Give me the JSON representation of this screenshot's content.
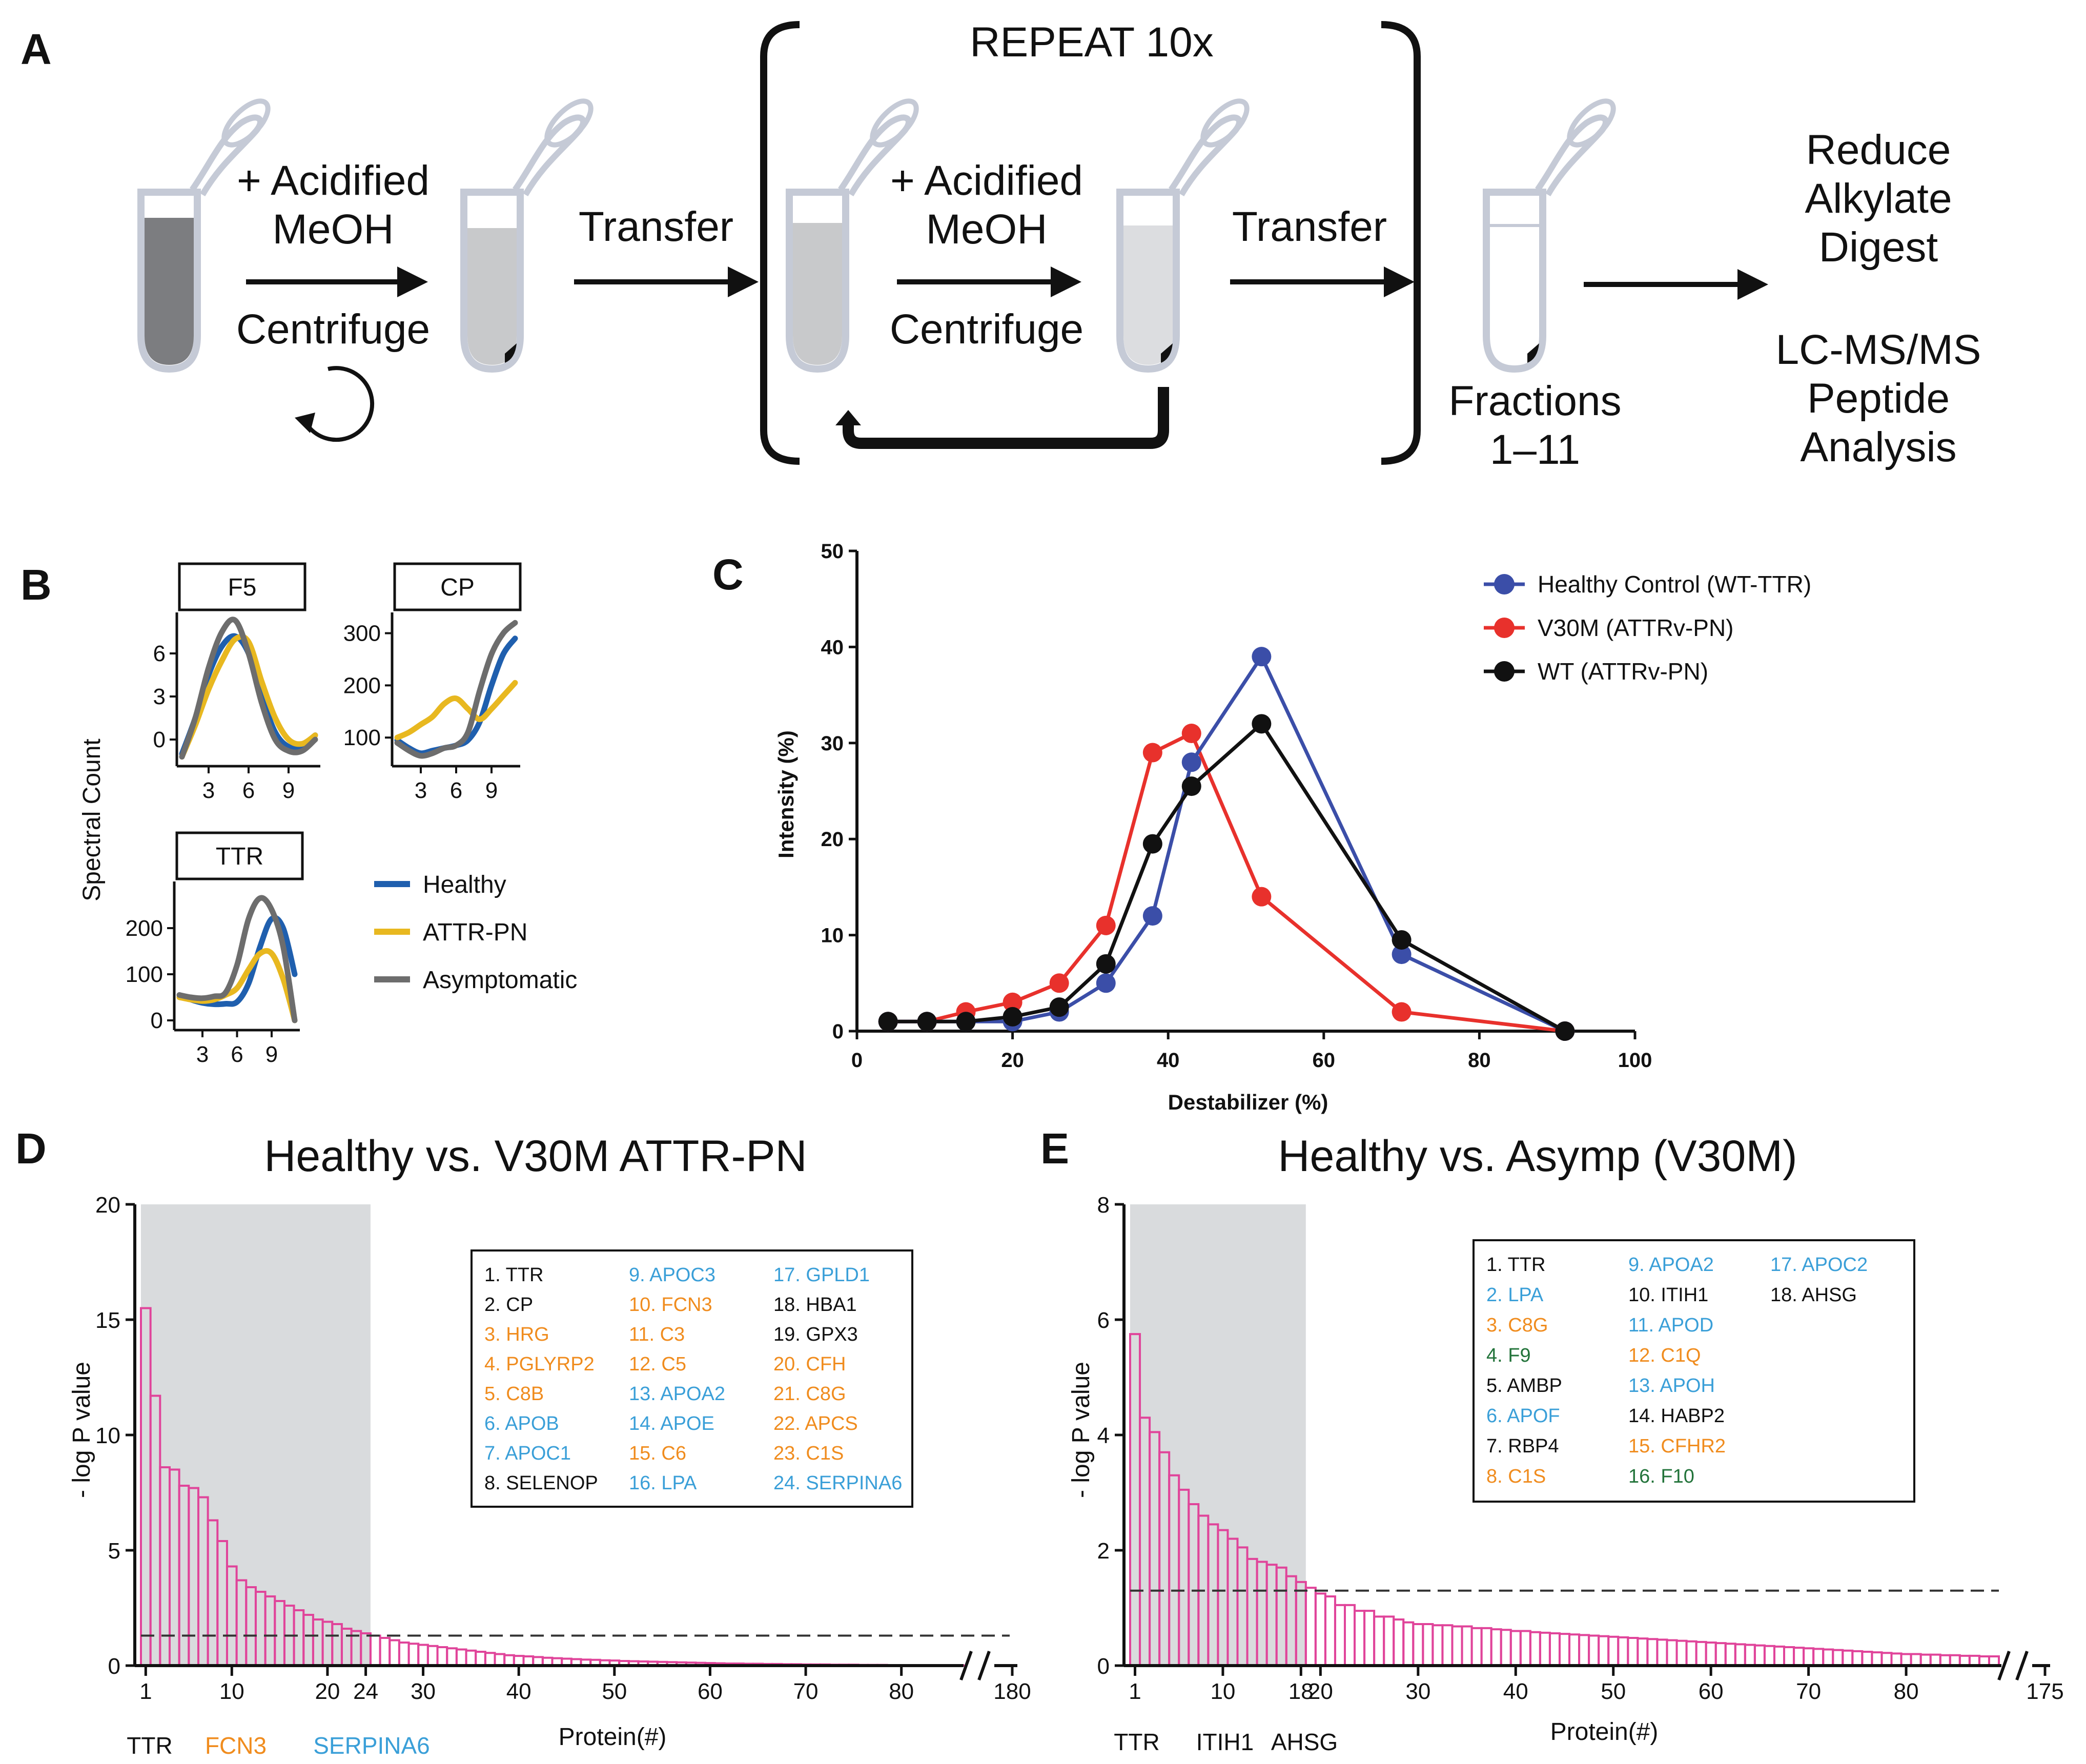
{
  "panels": {
    "A": "A",
    "B": "B",
    "C": "C",
    "D": "D",
    "E": "E"
  },
  "panel_a": {
    "repeat_label": "REPEAT 10x",
    "step1_top": "+ Acidified",
    "step1_mid": "MeOH",
    "step1_bottom": "Centrifuge",
    "transfer_1": "Transfer",
    "step2_top": "+ Acidified",
    "step2_mid": "MeOH",
    "step2_bottom": "Centrifuge",
    "transfer_2": "Transfer",
    "fractions_1": "Fractions",
    "fractions_2": "1–11",
    "reduce": "Reduce",
    "alkylate": "Alkylate",
    "digest": "Digest",
    "lcms": "LC-MS/MS",
    "peptide": "Peptide",
    "analysis": "Analysis"
  },
  "colors": {
    "healthy_b": "#1f5fae",
    "attr_b": "#e8b820",
    "asymp_b": "#6d6d6d",
    "healthy_c": "#3b4ea8",
    "v30m_c": "#e8312c",
    "wt_c": "#111111",
    "bar_pink": "#e0449a",
    "shade": "#d9dbdd",
    "orange": "#f08c1e",
    "blue": "#3a9fd8",
    "green": "#22733a"
  },
  "panel_b": {
    "ylabel": "Spectral Count",
    "legend": [
      "Healthy",
      "ATTR-PN",
      "Asymptomatic"
    ],
    "x_ticks": [
      "3",
      "6",
      "9"
    ],
    "f5": {
      "title": "F5",
      "y_ticks": [
        "0",
        "3",
        "6"
      ],
      "ylim": [
        -1.5,
        8.5
      ],
      "x": [
        1,
        2,
        3,
        4,
        5,
        6,
        7,
        8,
        9,
        10,
        11
      ],
      "healthy": [
        -1.0,
        1.5,
        4.5,
        6.5,
        7.2,
        6.0,
        3.0,
        0.5,
        -0.5,
        -0.5,
        0.3
      ],
      "attr": [
        -1.2,
        1.0,
        3.5,
        5.5,
        7.0,
        6.8,
        4.0,
        1.5,
        0.0,
        -0.3,
        0.3
      ],
      "asymp": [
        -1.2,
        1.5,
        5.0,
        7.5,
        8.3,
        6.0,
        2.5,
        0.0,
        -0.8,
        -0.8,
        0.0
      ]
    },
    "cp": {
      "title": "CP",
      "y_ticks": [
        "100",
        "200",
        "300"
      ],
      "ylim": [
        55,
        330
      ],
      "x": [
        1,
        2,
        3,
        4,
        5,
        6,
        7,
        8,
        9,
        10,
        11
      ],
      "healthy": [
        95,
        80,
        70,
        75,
        80,
        85,
        95,
        130,
        200,
        260,
        290
      ],
      "attr": [
        100,
        110,
        125,
        140,
        165,
        175,
        155,
        135,
        155,
        180,
        205
      ],
      "asymp": [
        90,
        75,
        65,
        70,
        80,
        85,
        110,
        190,
        260,
        300,
        320
      ]
    },
    "ttr": {
      "title": "TTR",
      "y_ticks": [
        "0",
        "100",
        "200"
      ],
      "ylim": [
        -10,
        290
      ],
      "x": [
        1,
        2,
        3,
        4,
        5,
        6,
        7,
        8,
        9,
        10,
        11
      ],
      "healthy": [
        55,
        45,
        38,
        35,
        36,
        40,
        80,
        160,
        220,
        200,
        100
      ],
      "attr": [
        50,
        45,
        42,
        45,
        55,
        70,
        110,
        145,
        145,
        90,
        0
      ],
      "asymp": [
        55,
        50,
        48,
        52,
        60,
        120,
        220,
        265,
        240,
        160,
        0
      ]
    }
  },
  "chart_data": [
    {
      "type": "line",
      "title": "",
      "xlabel": "Destabilizer (%)",
      "ylabel": "Intensity (%)",
      "xlim": [
        0,
        100
      ],
      "ylim": [
        0,
        50
      ],
      "x_ticks": [
        "0",
        "20",
        "40",
        "60",
        "80",
        "100"
      ],
      "y_ticks": [
        "0",
        "10",
        "20",
        "30",
        "40",
        "50"
      ],
      "series": [
        {
          "name": "Healthy Control (WT-TTR)",
          "x": [
            4,
            9,
            14,
            20,
            26,
            32,
            38,
            43,
            52,
            70,
            91
          ],
          "values": [
            1,
            1,
            1,
            1,
            2,
            5,
            12,
            28,
            39,
            8,
            0
          ]
        },
        {
          "name": "V30M (ATTRv-PN)",
          "x": [
            4,
            9,
            14,
            20,
            26,
            32,
            38,
            43,
            52,
            70,
            91
          ],
          "values": [
            1,
            1,
            2,
            3,
            5,
            11,
            29,
            31,
            14,
            2,
            0
          ]
        },
        {
          "name": "WT (ATTRv-PN)",
          "x": [
            4,
            9,
            14,
            20,
            26,
            32,
            38,
            43,
            52,
            70,
            91
          ],
          "values": [
            1,
            1,
            1,
            1.5,
            2.5,
            7,
            19.5,
            25.5,
            32,
            9.5,
            0
          ]
        }
      ]
    },
    {
      "type": "bar",
      "title": "Healthy vs. V30M ATTR-PN",
      "xlabel": "Protein(#)",
      "ylabel": "- log P value",
      "ylim": [
        0,
        20
      ],
      "y_ticks": [
        "0",
        "5",
        "10",
        "15",
        "20"
      ],
      "x_ticks": [
        "1",
        "10",
        "20",
        "24",
        "30",
        "40",
        "50",
        "60",
        "70",
        "80"
      ],
      "x_break_label": "180",
      "threshold": 1.3,
      "shaded_count": 24,
      "values": [
        15.5,
        11.7,
        8.6,
        8.5,
        7.8,
        7.7,
        7.3,
        6.3,
        5.4,
        4.3,
        3.7,
        3.4,
        3.2,
        3.0,
        2.8,
        2.6,
        2.4,
        2.2,
        2.0,
        1.9,
        1.8,
        1.6,
        1.5,
        1.4,
        1.3,
        1.2,
        1.1,
        1.0,
        0.95,
        0.9,
        0.85,
        0.8,
        0.75,
        0.7,
        0.65,
        0.6,
        0.55,
        0.5,
        0.45,
        0.42,
        0.4,
        0.37,
        0.34,
        0.32,
        0.3,
        0.28,
        0.26,
        0.25,
        0.23,
        0.22,
        0.2,
        0.19,
        0.18,
        0.17,
        0.16,
        0.15,
        0.14,
        0.13,
        0.12,
        0.11,
        0.1,
        0.09,
        0.09,
        0.08,
        0.08,
        0.07,
        0.07,
        0.06,
        0.06,
        0.05,
        0.05,
        0.05,
        0.04,
        0.04,
        0.04,
        0.03,
        0.03,
        0.03,
        0.02,
        0.02,
        0.02,
        0.02,
        0.01,
        0.01,
        0.01,
        0.01
      ],
      "under_labels": [
        {
          "text": "TTR",
          "color": "#111111"
        },
        {
          "text": "FCN3",
          "color": "#f08c1e"
        },
        {
          "text": "SERPINA6",
          "color": "#3a9fd8"
        }
      ],
      "box_columns": [
        [
          {
            "text": "1. TTR",
            "color": "#111111"
          },
          {
            "text": "2. CP",
            "color": "#111111"
          },
          {
            "text": "3. HRG",
            "color": "#f08c1e"
          },
          {
            "text": "4. PGLYRP2",
            "color": "#f08c1e"
          },
          {
            "text": "5. C8B",
            "color": "#f08c1e"
          },
          {
            "text": "6. APOB",
            "color": "#3a9fd8"
          },
          {
            "text": "7. APOC1",
            "color": "#3a9fd8"
          },
          {
            "text": "8. SELENOP",
            "color": "#111111"
          }
        ],
        [
          {
            "text": "9. APOC3",
            "color": "#3a9fd8"
          },
          {
            "text": "10. FCN3",
            "color": "#f08c1e"
          },
          {
            "text": "11. C3",
            "color": "#f08c1e"
          },
          {
            "text": "12. C5",
            "color": "#f08c1e"
          },
          {
            "text": "13. APOA2",
            "color": "#3a9fd8"
          },
          {
            "text": "14. APOE",
            "color": "#3a9fd8"
          },
          {
            "text": "15. C6",
            "color": "#f08c1e"
          },
          {
            "text": "16. LPA",
            "color": "#3a9fd8"
          }
        ],
        [
          {
            "text": "17. GPLD1",
            "color": "#3a9fd8"
          },
          {
            "text": "18. HBA1",
            "color": "#111111"
          },
          {
            "text": "19. GPX3",
            "color": "#111111"
          },
          {
            "text": "20. CFH",
            "color": "#f08c1e"
          },
          {
            "text": "21. C8G",
            "color": "#f08c1e"
          },
          {
            "text": "22. APCS",
            "color": "#f08c1e"
          },
          {
            "text": "23. C1S",
            "color": "#f08c1e"
          },
          {
            "text": "24. SERPINA6",
            "color": "#3a9fd8"
          }
        ]
      ]
    },
    {
      "type": "bar",
      "title": "Healthy vs. Asymp (V30M)",
      "xlabel": "Protein(#)",
      "ylabel": "- log P value",
      "ylim": [
        0,
        8
      ],
      "y_ticks": [
        "0",
        "2",
        "4",
        "6",
        "8"
      ],
      "x_ticks": [
        "1",
        "10",
        "18",
        "20",
        "30",
        "40",
        "50",
        "60",
        "70",
        "80"
      ],
      "x_break_label": "175",
      "threshold": 1.3,
      "shaded_count": 18,
      "values": [
        5.75,
        4.3,
        4.05,
        3.7,
        3.3,
        3.05,
        2.8,
        2.6,
        2.45,
        2.35,
        2.2,
        2.05,
        1.85,
        1.8,
        1.75,
        1.7,
        1.55,
        1.45,
        1.35,
        1.25,
        1.2,
        1.05,
        1.05,
        0.95,
        0.95,
        0.85,
        0.85,
        0.8,
        0.75,
        0.72,
        0.72,
        0.7,
        0.7,
        0.68,
        0.68,
        0.65,
        0.65,
        0.63,
        0.62,
        0.6,
        0.6,
        0.58,
        0.57,
        0.56,
        0.55,
        0.54,
        0.53,
        0.52,
        0.51,
        0.5,
        0.49,
        0.48,
        0.47,
        0.46,
        0.45,
        0.44,
        0.43,
        0.42,
        0.41,
        0.4,
        0.39,
        0.38,
        0.37,
        0.36,
        0.35,
        0.34,
        0.33,
        0.32,
        0.31,
        0.3,
        0.29,
        0.28,
        0.27,
        0.26,
        0.25,
        0.24,
        0.23,
        0.22,
        0.21,
        0.2,
        0.2,
        0.19,
        0.19,
        0.18,
        0.18,
        0.17,
        0.17,
        0.16,
        0.16
      ],
      "under_labels": [
        {
          "text": "TTR",
          "color": "#111111"
        },
        {
          "text": "ITIH1",
          "color": "#111111"
        },
        {
          "text": "AHSG",
          "color": "#111111"
        }
      ],
      "box_columns": [
        [
          {
            "text": "1. TTR",
            "color": "#111111"
          },
          {
            "text": "2. LPA",
            "color": "#3a9fd8"
          },
          {
            "text": "3. C8G",
            "color": "#f08c1e"
          },
          {
            "text": "4. F9",
            "color": "#22733a"
          },
          {
            "text": "5. AMBP",
            "color": "#111111"
          },
          {
            "text": "6. APOF",
            "color": "#3a9fd8"
          },
          {
            "text": "7. RBP4",
            "color": "#111111"
          },
          {
            "text": "8. C1S",
            "color": "#f08c1e"
          }
        ],
        [
          {
            "text": "9. APOA2",
            "color": "#3a9fd8"
          },
          {
            "text": "10. ITIH1",
            "color": "#111111"
          },
          {
            "text": "11. APOD",
            "color": "#3a9fd8"
          },
          {
            "text": "12. C1Q",
            "color": "#f08c1e"
          },
          {
            "text": "13. APOH",
            "color": "#3a9fd8"
          },
          {
            "text": "14. HABP2",
            "color": "#111111"
          },
          {
            "text": "15. CFHR2",
            "color": "#f08c1e"
          },
          {
            "text": "16. F10",
            "color": "#22733a"
          }
        ],
        [
          {
            "text": "17. APOC2",
            "color": "#3a9fd8"
          },
          {
            "text": "18. AHSG",
            "color": "#111111"
          }
        ]
      ]
    }
  ]
}
